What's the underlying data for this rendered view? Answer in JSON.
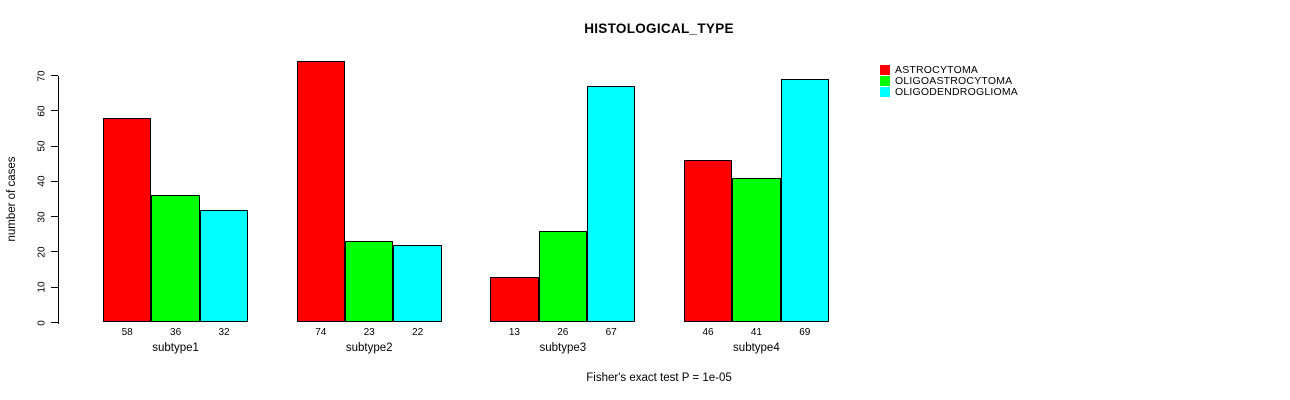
{
  "chart_data": {
    "type": "bar",
    "title": "HISTOLOGICAL_TYPE",
    "ylabel": "number of cases",
    "xlabel": "",
    "categories": [
      "subtype1",
      "subtype2",
      "subtype3",
      "subtype4"
    ],
    "series": [
      {
        "name": "ASTROCYTOMA",
        "color": "#FF0000",
        "values": [
          58,
          74,
          13,
          46
        ]
      },
      {
        "name": "OLIGOASTROCYTOMA",
        "color": "#00FF00",
        "values": [
          36,
          23,
          26,
          41
        ]
      },
      {
        "name": "OLIGODENDROGLIOMA",
        "color": "#00FFFF",
        "values": [
          32,
          22,
          67,
          69
        ]
      }
    ],
    "yticks": [
      0,
      10,
      20,
      30,
      40,
      50,
      60,
      70
    ],
    "ylim": [
      0,
      74
    ],
    "grid": false,
    "legend_position": "right",
    "bar_value_labels": true,
    "footnote": "Fisher's exact test P = 1e-05"
  }
}
